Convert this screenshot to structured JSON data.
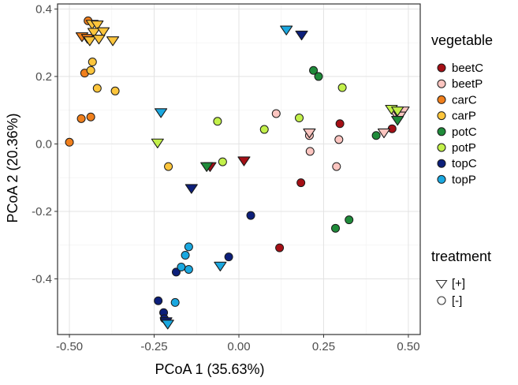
{
  "chart_data": {
    "type": "scatter",
    "xlabel": "PCoA 1 (35.63%)",
    "ylabel": "PCoA 2 (20.36%)",
    "xlim": [
      -0.535,
      0.535
    ],
    "ylim": [
      -0.565,
      0.415
    ],
    "xticks": [
      -0.5,
      -0.25,
      0,
      0.25,
      0.5
    ],
    "xtick_labels": [
      "-0.50",
      "-0.25",
      "0.00",
      "0.25",
      "0.50"
    ],
    "yticks": [
      0.4,
      0.2,
      0,
      -0.2,
      -0.4
    ],
    "ytick_labels": [
      "0.4",
      "0.2",
      "0.0",
      "-0.2",
      "-0.4"
    ],
    "grid": true,
    "legend_placement": "right",
    "legends": [
      {
        "title": "vegetable",
        "entries": [
          {
            "label": "beetC",
            "color": "#a50f15"
          },
          {
            "label": "beetP",
            "color": "#fcc5c0"
          },
          {
            "label": "carC",
            "color": "#f07f1c"
          },
          {
            "label": "carP",
            "color": "#fcc53c"
          },
          {
            "label": "potC",
            "color": "#1f8b3a"
          },
          {
            "label": "potP",
            "color": "#c2f04a"
          },
          {
            "label": "topC",
            "color": "#0c1f7a"
          },
          {
            "label": "topP",
            "color": "#1aa8e0"
          }
        ]
      },
      {
        "title": "treatment",
        "entries": [
          {
            "label": "[+]",
            "shape": "triangle-down"
          },
          {
            "label": "[-]",
            "shape": "circle"
          }
        ]
      }
    ],
    "series": [
      {
        "name": "carC",
        "color": "#f07f1c",
        "points": [
          {
            "x": -0.445,
            "y": 0.365,
            "t": "-"
          },
          {
            "x": -0.455,
            "y": 0.21,
            "t": "-"
          },
          {
            "x": -0.437,
            "y": 0.08,
            "t": "-"
          },
          {
            "x": -0.465,
            "y": 0.075,
            "t": "-"
          },
          {
            "x": -0.5,
            "y": 0.005,
            "t": "-"
          },
          {
            "x": -0.463,
            "y": 0.32,
            "t": "+"
          },
          {
            "x": -0.447,
            "y": 0.315,
            "t": "+"
          }
        ]
      },
      {
        "name": "carP",
        "color": "#fcc53c",
        "points": [
          {
            "x": -0.432,
            "y": 0.243,
            "t": "-"
          },
          {
            "x": -0.437,
            "y": 0.218,
            "t": "-"
          },
          {
            "x": -0.418,
            "y": 0.165,
            "t": "-"
          },
          {
            "x": -0.365,
            "y": 0.157,
            "t": "-"
          },
          {
            "x": -0.208,
            "y": -0.067,
            "t": "-"
          },
          {
            "x": -0.433,
            "y": 0.357,
            "t": "+"
          },
          {
            "x": -0.418,
            "y": 0.355,
            "t": "+"
          },
          {
            "x": -0.428,
            "y": 0.333,
            "t": "+"
          },
          {
            "x": -0.4,
            "y": 0.335,
            "t": "+"
          },
          {
            "x": -0.44,
            "y": 0.308,
            "t": "+"
          },
          {
            "x": -0.413,
            "y": 0.313,
            "t": "+"
          },
          {
            "x": -0.372,
            "y": 0.308,
            "t": "+"
          }
        ]
      },
      {
        "name": "beetC",
        "color": "#a50f15",
        "points": [
          {
            "x": 0.298,
            "y": 0.06,
            "t": "-"
          },
          {
            "x": 0.452,
            "y": 0.045,
            "t": "-"
          },
          {
            "x": 0.183,
            "y": -0.115,
            "t": "-"
          },
          {
            "x": 0.12,
            "y": -0.308,
            "t": "-"
          },
          {
            "x": -0.085,
            "y": -0.065,
            "t": "+"
          },
          {
            "x": 0.015,
            "y": -0.048,
            "t": "+"
          }
        ]
      },
      {
        "name": "beetP",
        "color": "#fcc5c0",
        "points": [
          {
            "x": 0.11,
            "y": 0.09,
            "t": "-"
          },
          {
            "x": 0.208,
            "y": 0.025,
            "t": "-"
          },
          {
            "x": 0.295,
            "y": 0.013,
            "t": "-"
          },
          {
            "x": 0.21,
            "y": -0.022,
            "t": "-"
          },
          {
            "x": 0.288,
            "y": -0.067,
            "t": "-"
          },
          {
            "x": 0.208,
            "y": 0.035,
            "t": "+"
          },
          {
            "x": 0.428,
            "y": 0.035,
            "t": "+"
          },
          {
            "x": 0.46,
            "y": 0.095,
            "t": "+"
          },
          {
            "x": 0.485,
            "y": 0.1,
            "t": "+"
          },
          {
            "x": 0.475,
            "y": 0.085,
            "t": "+"
          }
        ]
      },
      {
        "name": "potC",
        "color": "#1f8b3a",
        "points": [
          {
            "x": 0.22,
            "y": 0.218,
            "t": "-"
          },
          {
            "x": 0.235,
            "y": 0.2,
            "t": "-"
          },
          {
            "x": 0.405,
            "y": 0.025,
            "t": "-"
          },
          {
            "x": 0.325,
            "y": -0.225,
            "t": "-"
          },
          {
            "x": 0.285,
            "y": -0.25,
            "t": "-"
          },
          {
            "x": -0.095,
            "y": -0.065,
            "t": "+"
          },
          {
            "x": 0.468,
            "y": 0.072,
            "t": "+"
          }
        ]
      },
      {
        "name": "potP",
        "color": "#c2f04a",
        "points": [
          {
            "x": 0.305,
            "y": 0.167,
            "t": "-"
          },
          {
            "x": 0.178,
            "y": 0.077,
            "t": "-"
          },
          {
            "x": 0.075,
            "y": 0.043,
            "t": "-"
          },
          {
            "x": -0.063,
            "y": 0.067,
            "t": "-"
          },
          {
            "x": -0.048,
            "y": -0.053,
            "t": "-"
          },
          {
            "x": -0.24,
            "y": 0.005,
            "t": "+"
          },
          {
            "x": 0.45,
            "y": 0.105,
            "t": "+"
          },
          {
            "x": 0.468,
            "y": 0.1,
            "t": "+"
          }
        ]
      },
      {
        "name": "topC",
        "color": "#0c1f7a",
        "points": [
          {
            "x": 0.035,
            "y": -0.212,
            "t": "-"
          },
          {
            "x": -0.03,
            "y": -0.335,
            "t": "-"
          },
          {
            "x": -0.185,
            "y": -0.38,
            "t": "-"
          },
          {
            "x": -0.238,
            "y": -0.465,
            "t": "-"
          },
          {
            "x": -0.222,
            "y": -0.5,
            "t": "-"
          },
          {
            "x": -0.22,
            "y": -0.518,
            "t": "-"
          },
          {
            "x": 0.185,
            "y": 0.325,
            "t": "+"
          },
          {
            "x": -0.14,
            "y": -0.13,
            "t": "+"
          },
          {
            "x": -0.215,
            "y": -0.525,
            "t": "+"
          }
        ]
      },
      {
        "name": "topP",
        "color": "#1aa8e0",
        "points": [
          {
            "x": -0.148,
            "y": -0.305,
            "t": "-"
          },
          {
            "x": -0.158,
            "y": -0.33,
            "t": "-"
          },
          {
            "x": -0.17,
            "y": -0.365,
            "t": "-"
          },
          {
            "x": -0.148,
            "y": -0.372,
            "t": "-"
          },
          {
            "x": -0.188,
            "y": -0.47,
            "t": "-"
          },
          {
            "x": 0.14,
            "y": 0.34,
            "t": "+"
          },
          {
            "x": -0.23,
            "y": 0.095,
            "t": "+"
          },
          {
            "x": -0.055,
            "y": -0.36,
            "t": "+"
          },
          {
            "x": -0.21,
            "y": -0.532,
            "t": "+"
          }
        ]
      }
    ]
  }
}
